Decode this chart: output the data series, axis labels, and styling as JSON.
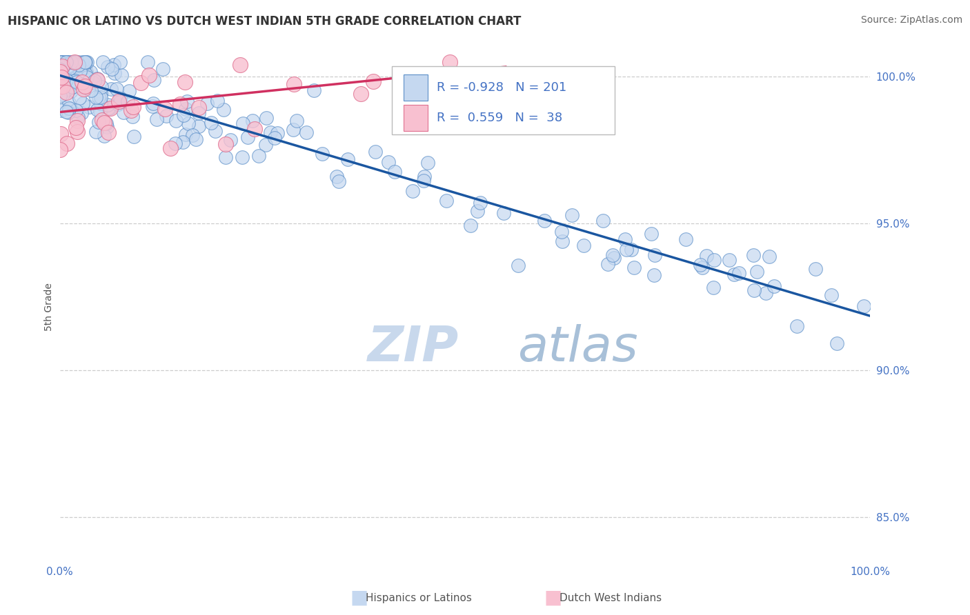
{
  "title": "HISPANIC OR LATINO VS DUTCH WEST INDIAN 5TH GRADE CORRELATION CHART",
  "source_text": "Source: ZipAtlas.com",
  "ylabel": "5th Grade",
  "watermark_zip": "ZIP",
  "watermark_atlas": "atlas",
  "blue_R": -0.928,
  "blue_N": 201,
  "pink_R": 0.559,
  "pink_N": 38,
  "blue_fill": "#c5d8f0",
  "blue_edge": "#5a8ec8",
  "blue_line": "#1a56a0",
  "pink_fill": "#f8c0d0",
  "pink_edge": "#e07090",
  "pink_line": "#d03060",
  "legend_label_blue": "Hispanics or Latinos",
  "legend_label_pink": "Dutch West Indians",
  "xmin": 0.0,
  "xmax": 1.0,
  "ymin": 0.835,
  "ymax": 1.008,
  "yticks": [
    0.85,
    0.9,
    0.95,
    1.0
  ],
  "ytick_labels": [
    "85.0%",
    "90.0%",
    "95.0%",
    "100.0%"
  ],
  "tick_color": "#4472c4",
  "grid_color": "#c8c8c8",
  "title_color": "#333333",
  "source_color": "#666666",
  "ylabel_color": "#555555",
  "bg_color": "#ffffff",
  "title_fontsize": 12,
  "source_fontsize": 10,
  "tick_fontsize": 11,
  "ylabel_fontsize": 10,
  "legend_fontsize": 13,
  "watermark_fontsize_zip": 52,
  "watermark_fontsize_atlas": 52,
  "blue_intercept": 1.0005,
  "blue_slope": -0.082,
  "pink_intercept": 0.988,
  "pink_slope": 0.028
}
